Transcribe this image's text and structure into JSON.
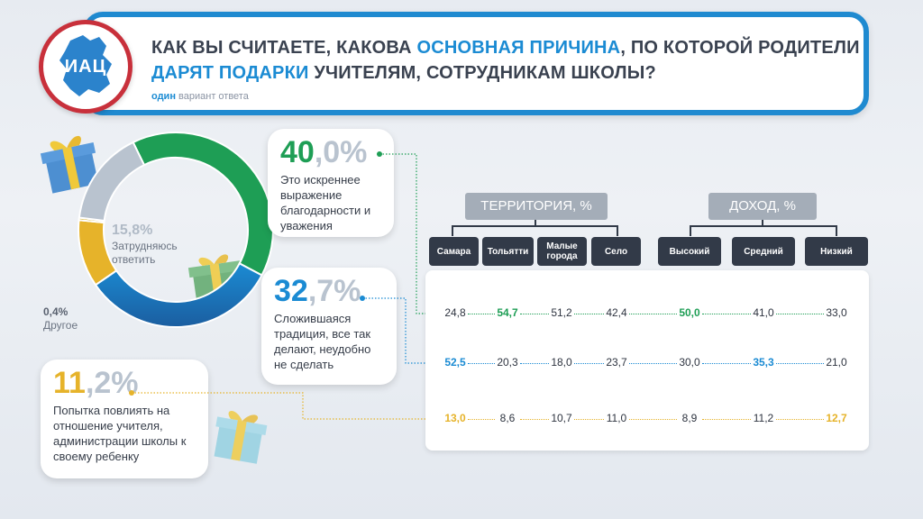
{
  "header": {
    "title_parts": [
      {
        "t": "КАК ВЫ СЧИТАЕТЕ, КАКОВА ",
        "hl": false
      },
      {
        "t": "ОСНОВНАЯ ПРИЧИНА",
        "hl": true
      },
      {
        "t": ", ПО КОТОРОЙ РОДИТЕЛИ ",
        "hl": false
      },
      {
        "t": "ДАРЯТ ПОДАРКИ",
        "hl": true
      },
      {
        "t": " УЧИТЕЛЯМ, СОТРУДНИКАМ ШКОЛЫ?",
        "hl": false
      }
    ],
    "sub_bold": "один",
    "sub_rest": " вариант ответа",
    "logo": "ИАЦ"
  },
  "colors": {
    "green": "#1e9e55",
    "blue": "#1b8bd3",
    "darkblue": "#1b5ea0",
    "yellow": "#e6b32a",
    "gray": "#b9c3cf",
    "gray_pct": "#b0bac6"
  },
  "chart_data": {
    "type": "pie",
    "donut": true,
    "slices": [
      {
        "key": "sincere",
        "pct_whole": "40",
        "pct_frac": ",0%",
        "value": 40.0,
        "label": "Это искреннее выражение благодарности и уважения"
      },
      {
        "key": "tradition",
        "pct_whole": "32",
        "pct_frac": ",7%",
        "value": 32.7,
        "label": "Сложившаяся традиция, все так делают, неудобно не сделать"
      },
      {
        "key": "influence",
        "pct_whole": "11",
        "pct_frac": ",2%",
        "value": 11.2,
        "label": "Попытка повлиять на отношение учителя, администрации школы к своему ребенку"
      },
      {
        "key": "other",
        "pct": "0,4%",
        "value": 0.4,
        "label": "Другое"
      },
      {
        "key": "dk",
        "pct": "15,8%",
        "value": 15.8,
        "label": "Затрудняюсь ответить"
      }
    ]
  },
  "table": {
    "groups": [
      {
        "title": "ТЕРРИТОРИЯ, %"
      },
      {
        "title": "ДОХОД, %"
      }
    ],
    "columns": [
      "Самара",
      "Тольятти",
      "Малые города",
      "Село",
      "Высокий",
      "Средний",
      "Низкий"
    ],
    "rows": [
      {
        "key": "sincere",
        "values": [
          "24,8",
          "54,7",
          "51,2",
          "42,4",
          "50,0",
          "41,0",
          "33,0"
        ],
        "highlight": [
          1,
          4
        ]
      },
      {
        "key": "tradition",
        "values": [
          "52,5",
          "20,3",
          "18,0",
          "23,7",
          "30,0",
          "35,3",
          "21,0"
        ],
        "highlight": [
          0,
          5
        ]
      },
      {
        "key": "influence",
        "values": [
          "13,0",
          "8,6",
          "10,7",
          "11,0",
          "8,9",
          "11,2",
          "12,7"
        ],
        "highlight": [
          0,
          6
        ]
      }
    ]
  }
}
